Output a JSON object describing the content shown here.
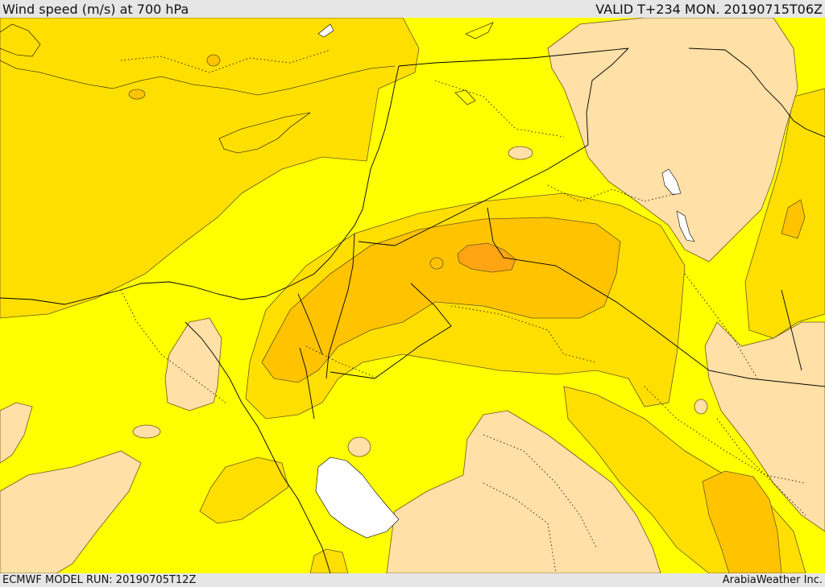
{
  "header": {
    "title": "Wind speed (m/s) at 700 hPa",
    "valid_time": "VALID T+234 MON. 20190715T06Z"
  },
  "footer": {
    "model_run": "ECMWF MODEL RUN: 20190705T12Z",
    "credit": "ArabiaWeather Inc."
  },
  "map": {
    "colors": {
      "background": "#ffff00",
      "low_speed": "#ffe0a6",
      "moderate": "#ffdf00",
      "fresh": "#ffc300",
      "strong": "#ffa412",
      "water_body": "#ffffff",
      "contour_line": "#6b5a20",
      "border_line": "#000000"
    }
  }
}
